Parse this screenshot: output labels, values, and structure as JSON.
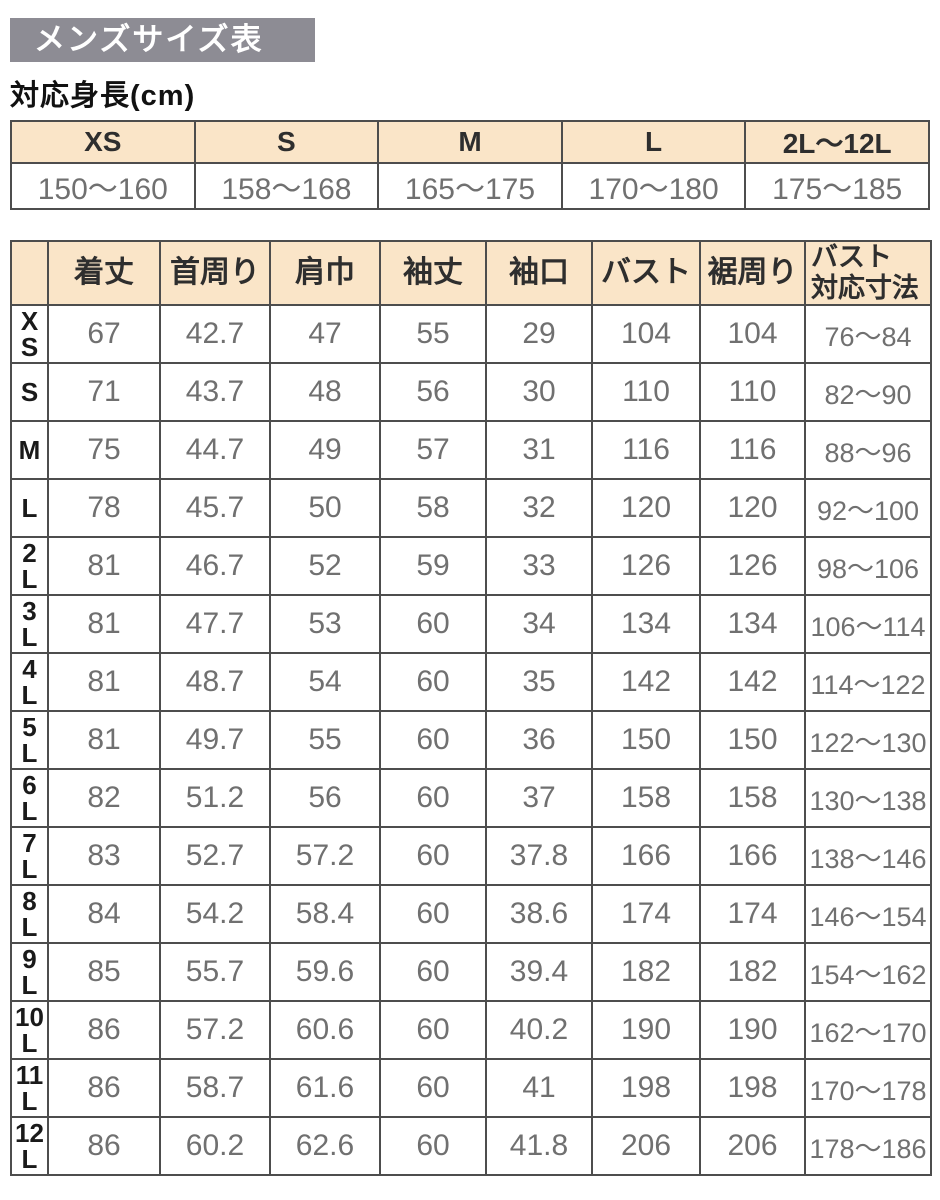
{
  "title": "メンズサイズ表",
  "height_table": {
    "caption": "対応身長(cm)",
    "columns": [
      "XS",
      "S",
      "M",
      "L",
      "2L～12L"
    ],
    "ranges": [
      "150～160",
      "158～168",
      "165～175",
      "170～180",
      "175～185"
    ]
  },
  "size_table": {
    "columns": [
      "着丈",
      "首周り",
      "肩巾",
      "袖丈",
      "袖口",
      "バスト",
      "裾周り",
      "バスト\n対応寸法"
    ],
    "rows": [
      {
        "label": "XS",
        "values": [
          "67",
          "42.7",
          "47",
          "55",
          "29",
          "104",
          "104",
          "76～84"
        ]
      },
      {
        "label": "S",
        "values": [
          "71",
          "43.7",
          "48",
          "56",
          "30",
          "110",
          "110",
          "82～90"
        ]
      },
      {
        "label": "M",
        "values": [
          "75",
          "44.7",
          "49",
          "57",
          "31",
          "116",
          "116",
          "88～96"
        ]
      },
      {
        "label": "L",
        "values": [
          "78",
          "45.7",
          "50",
          "58",
          "32",
          "120",
          "120",
          "92～100"
        ]
      },
      {
        "label": "2L",
        "values": [
          "81",
          "46.7",
          "52",
          "59",
          "33",
          "126",
          "126",
          "98～106"
        ]
      },
      {
        "label": "3L",
        "values": [
          "81",
          "47.7",
          "53",
          "60",
          "34",
          "134",
          "134",
          "106～114"
        ]
      },
      {
        "label": "4L",
        "values": [
          "81",
          "48.7",
          "54",
          "60",
          "35",
          "142",
          "142",
          "114～122"
        ]
      },
      {
        "label": "5L",
        "values": [
          "81",
          "49.7",
          "55",
          "60",
          "36",
          "150",
          "150",
          "122～130"
        ]
      },
      {
        "label": "6L",
        "values": [
          "82",
          "51.2",
          "56",
          "60",
          "37",
          "158",
          "158",
          "130～138"
        ]
      },
      {
        "label": "7L",
        "values": [
          "83",
          "52.7",
          "57.2",
          "60",
          "37.8",
          "166",
          "166",
          "138～146"
        ]
      },
      {
        "label": "8L",
        "values": [
          "84",
          "54.2",
          "58.4",
          "60",
          "38.6",
          "174",
          "174",
          "146～154"
        ]
      },
      {
        "label": "9L",
        "values": [
          "85",
          "55.7",
          "59.6",
          "60",
          "39.4",
          "182",
          "182",
          "154～162"
        ]
      },
      {
        "label": "10L",
        "values": [
          "86",
          "57.2",
          "60.6",
          "60",
          "40.2",
          "190",
          "190",
          "162～170"
        ]
      },
      {
        "label": "11L",
        "values": [
          "86",
          "58.7",
          "61.6",
          "60",
          "41",
          "198",
          "198",
          "170～178"
        ]
      },
      {
        "label": "12L",
        "values": [
          "86",
          "60.2",
          "62.6",
          "60",
          "41.8",
          "206",
          "206",
          "178～186"
        ]
      }
    ]
  },
  "colors": {
    "title_bar_bg": "#8d8c94",
    "header_cell_bg": "#fae5c8",
    "border": "#4d4d4d",
    "value_text": "#707070",
    "heading_text": "#2e2e2e"
  }
}
